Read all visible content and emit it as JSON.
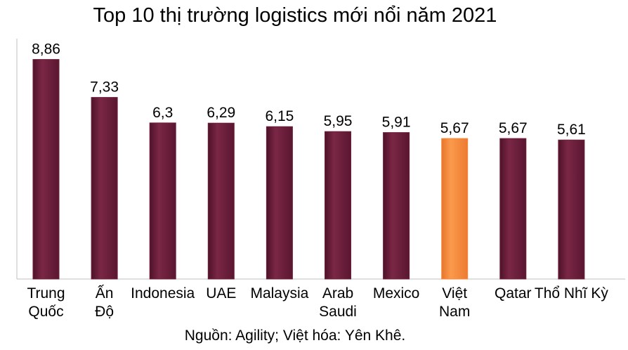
{
  "chart_data": {
    "type": "bar",
    "title": "Top 10 thị trường logistics mới nổi năm 2021",
    "categories": [
      "Trung Quốc",
      "Ấn Độ",
      "Indonesia",
      "UAE",
      "Malaysia",
      "Arab Saudi",
      "Mexico",
      "Việt Nam",
      "Qatar",
      "Thổ Nhĩ Kỳ"
    ],
    "category_lines": [
      [
        "Trung",
        "Quốc"
      ],
      [
        "Ấn",
        "Độ"
      ],
      [
        "Indonesia"
      ],
      [
        "UAE"
      ],
      [
        "Malaysia"
      ],
      [
        "Arab",
        "Saudi"
      ],
      [
        "Mexico"
      ],
      [
        "Việt",
        "Nam"
      ],
      [
        "Qatar"
      ],
      [
        "Thổ Nhĩ Kỳ"
      ]
    ],
    "values": [
      8.86,
      7.33,
      6.3,
      6.29,
      6.15,
      5.95,
      5.91,
      5.67,
      5.67,
      5.61
    ],
    "value_labels": [
      "8,86",
      "7,33",
      "6,3",
      "6,29",
      "6,15",
      "5,95",
      "5,91",
      "5,67",
      "5,67",
      "5,61"
    ],
    "ylim": [
      0,
      9.7
    ],
    "bar_color": "#6e1f3b",
    "highlight_index": 7,
    "highlight_color": "#f5873a",
    "grid": false,
    "legend": "none",
    "xlabel": "",
    "ylabel": "",
    "source": "Nguồn: Agility; Việt hóa: Yên Khê."
  }
}
